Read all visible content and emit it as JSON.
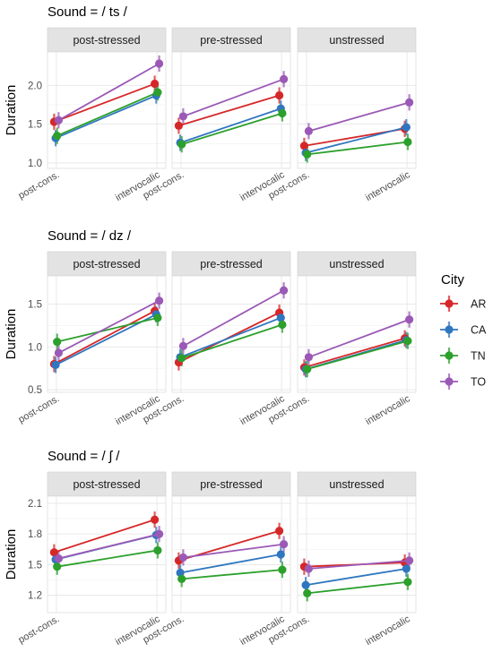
{
  "chart_data": {
    "type": "line",
    "legend": {
      "title": "City",
      "placement": "right"
    },
    "series_colors": {
      "AR": "#d62728",
      "CA": "#2f76c0",
      "TN": "#2ca02c",
      "TO": "#9b59b6"
    },
    "panel_names": [
      "post-stressed",
      "pre-stressed",
      "unstressed"
    ],
    "categories": [
      "post-cons.",
      "intervocalic"
    ],
    "y_label": "Duration",
    "rows": [
      {
        "title": "Sound = / ts /",
        "y_ticks": [
          "1.0",
          "1.5",
          "2.0"
        ],
        "ylim": [
          0.93,
          2.43
        ],
        "panels": [
          {
            "AR": [
              1.53,
              2.02
            ],
            "CA": [
              1.32,
              1.87
            ],
            "TN": [
              1.35,
              1.91
            ],
            "TO": [
              1.55,
              2.28
            ]
          },
          {
            "AR": [
              1.48,
              1.87
            ],
            "CA": [
              1.26,
              1.7
            ],
            "TN": [
              1.24,
              1.64
            ],
            "TO": [
              1.6,
              2.08
            ]
          },
          {
            "AR": [
              1.22,
              1.44
            ],
            "CA": [
              1.13,
              1.46
            ],
            "TN": [
              1.11,
              1.27
            ],
            "TO": [
              1.41,
              1.78
            ]
          }
        ]
      },
      {
        "title": "Sound = / dz /",
        "y_ticks": [
          "0.5",
          "1.0",
          "1.5"
        ],
        "ylim": [
          0.47,
          1.83
        ],
        "panels": [
          {
            "AR": [
              0.8,
              1.42
            ],
            "CA": [
              0.79,
              1.38
            ],
            "TN": [
              1.06,
              1.34
            ],
            "TO": [
              0.93,
              1.54
            ]
          },
          {
            "AR": [
              0.82,
              1.4
            ],
            "CA": [
              0.88,
              1.34
            ],
            "TN": [
              0.87,
              1.26
            ],
            "TO": [
              1.01,
              1.66
            ]
          },
          {
            "AR": [
              0.76,
              1.1
            ],
            "CA": [
              0.74,
              1.08
            ],
            "TN": [
              0.74,
              1.07
            ],
            "TO": [
              0.88,
              1.32
            ]
          }
        ]
      },
      {
        "title": "Sound = / ʃ /",
        "y_ticks": [
          "1.2",
          "1.5",
          "1.8",
          "2.1"
        ],
        "ylim": [
          1.03,
          2.17
        ],
        "panels": [
          {
            "AR": [
              1.62,
              1.94
            ],
            "CA": [
              1.55,
              1.79
            ],
            "TN": [
              1.48,
              1.64
            ],
            "TO": [
              1.56,
              1.8
            ]
          },
          {
            "AR": [
              1.54,
              1.83
            ],
            "CA": [
              1.42,
              1.6
            ],
            "TN": [
              1.36,
              1.45
            ],
            "TO": [
              1.57,
              1.7
            ]
          },
          {
            "AR": [
              1.48,
              1.52
            ],
            "CA": [
              1.3,
              1.46
            ],
            "TN": [
              1.22,
              1.33
            ],
            "TO": [
              1.46,
              1.54
            ]
          }
        ]
      }
    ]
  }
}
